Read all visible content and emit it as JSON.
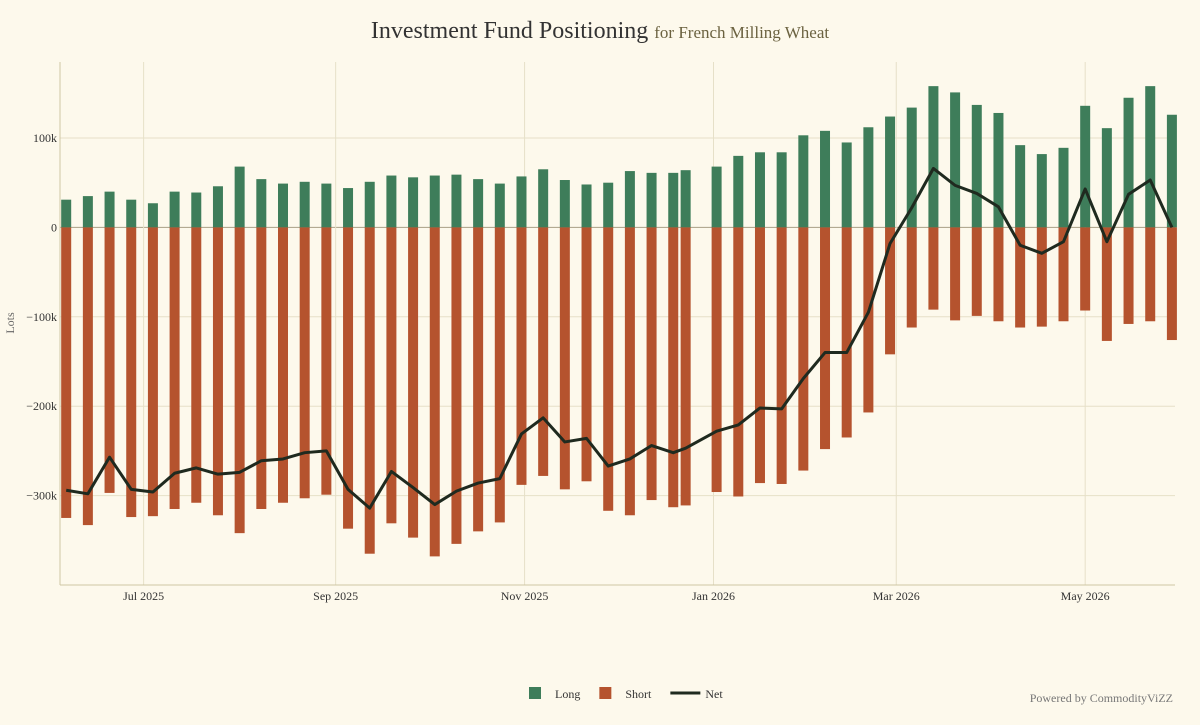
{
  "chart_data": {
    "type": "bar",
    "title": "Investment Fund Positioning",
    "subtitle": "for French Milling Wheat",
    "y_label": "Lots",
    "credit": "Powered by CommodityViZZ",
    "grid": true,
    "legend": "bottom",
    "x": [
      "2025-06-06",
      "2025-06-13",
      "2025-06-20",
      "2025-06-27",
      "2025-07-04",
      "2025-07-11",
      "2025-07-18",
      "2025-07-25",
      "2025-08-01",
      "2025-08-08",
      "2025-08-15",
      "2025-08-22",
      "2025-08-29",
      "2025-09-05",
      "2025-09-12",
      "2025-09-19",
      "2025-09-26",
      "2025-10-03",
      "2025-10-10",
      "2025-10-17",
      "2025-10-24",
      "2025-10-31",
      "2025-11-07",
      "2025-11-14",
      "2025-11-21",
      "2025-11-28",
      "2025-12-05",
      "2025-12-12",
      "2025-12-19",
      "2025-12-23",
      "2026-01-02",
      "2026-01-09",
      "2026-01-16",
      "2026-01-23",
      "2026-01-30",
      "2026-02-06",
      "2026-02-13",
      "2026-02-20",
      "2026-02-27",
      "2026-03-06",
      "2026-03-13",
      "2026-03-20",
      "2026-03-27",
      "2026-04-03",
      "2026-04-10",
      "2026-04-17",
      "2026-04-24",
      "2026-05-01",
      "2026-05-08",
      "2026-05-15",
      "2026-05-22",
      "2026-05-29"
    ],
    "xlim": [
      "2025-06-04",
      "2026-05-30"
    ],
    "xticks": [
      {
        "value": "2025-07-01",
        "label": "Jul 2025"
      },
      {
        "value": "2025-09-01",
        "label": "Sep 2025"
      },
      {
        "value": "2025-11-01",
        "label": "Nov 2025"
      },
      {
        "value": "2026-01-01",
        "label": "Jan 2026"
      },
      {
        "value": "2026-03-01",
        "label": "Mar 2026"
      },
      {
        "value": "2026-05-01",
        "label": "May 2026"
      }
    ],
    "ylim": [
      -400000,
      185000
    ],
    "yticks": [
      {
        "value": -300000,
        "label": "−300k"
      },
      {
        "value": -200000,
        "label": "−200k"
      },
      {
        "value": -100000,
        "label": "−100k"
      },
      0,
      {
        "value": 100000,
        "label": "100k"
      }
    ],
    "series": [
      {
        "name": "Long",
        "type": "bar",
        "color": "#3e7d5a",
        "values": [
          31000,
          35000,
          40000,
          31000,
          27000,
          40000,
          39000,
          46000,
          68000,
          54000,
          49000,
          51000,
          49000,
          44000,
          51000,
          58000,
          56000,
          58000,
          59000,
          54000,
          49000,
          57000,
          65000,
          53000,
          48000,
          50000,
          63000,
          61000,
          61000,
          64000,
          68000,
          80000,
          84000,
          84000,
          103000,
          108000,
          95000,
          112000,
          124000,
          134000,
          158000,
          151000,
          137000,
          128000,
          92000,
          82000,
          89000,
          136000,
          111000,
          145000,
          158000,
          126000
        ]
      },
      {
        "name": "Short",
        "type": "bar",
        "color": "#b5532e",
        "values": [
          -325000,
          -333000,
          -297000,
          -324000,
          -323000,
          -315000,
          -308000,
          -322000,
          -342000,
          -315000,
          -308000,
          -303000,
          -299000,
          -337000,
          -365000,
          -331000,
          -347000,
          -368000,
          -354000,
          -340000,
          -330000,
          -288000,
          -278000,
          -293000,
          -284000,
          -317000,
          -322000,
          -305000,
          -313000,
          -311000,
          -296000,
          -301000,
          -286000,
          -287000,
          -272000,
          -248000,
          -235000,
          -207000,
          -142000,
          -112000,
          -92000,
          -104000,
          -99000,
          -105000,
          -112000,
          -111000,
          -105000,
          -93000,
          -127000,
          -108000,
          -105000,
          -126000
        ]
      },
      {
        "name": "Net",
        "type": "line",
        "color": "#1f2a1f",
        "values": [
          -294000,
          -298000,
          -257000,
          -293000,
          -296000,
          -275000,
          -269000,
          -276000,
          -274000,
          -261000,
          -259000,
          -252000,
          -250000,
          -293000,
          -314000,
          -273000,
          -291000,
          -310000,
          -295000,
          -286000,
          -281000,
          -231000,
          -213000,
          -240000,
          -236000,
          -267000,
          -259000,
          -244000,
          -252000,
          -247000,
          -228000,
          -221000,
          -202000,
          -203000,
          -169000,
          -140000,
          -140000,
          -95000,
          -18000,
          22000,
          66000,
          47000,
          38000,
          23000,
          -20000,
          -29000,
          -16000,
          43000,
          -16000,
          37000,
          53000,
          0
        ]
      }
    ]
  }
}
